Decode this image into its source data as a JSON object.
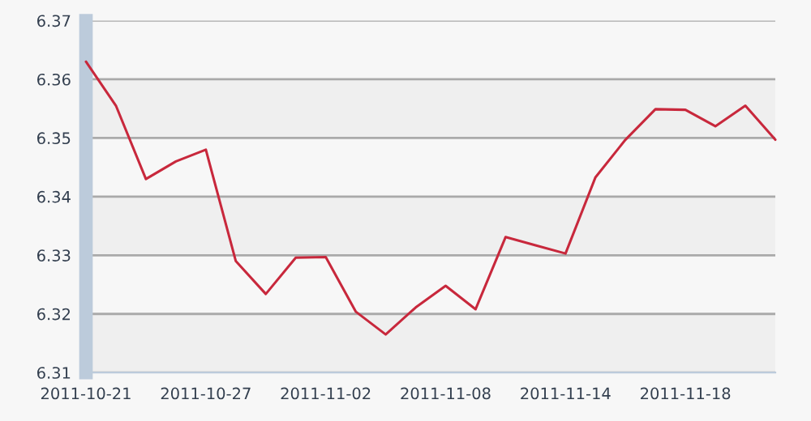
{
  "chart_data": {
    "type": "line",
    "categories": [
      "2011-10-21",
      null,
      null,
      null,
      "2011-10-27",
      null,
      null,
      null,
      "2011-11-02",
      null,
      null,
      null,
      "2011-11-08",
      null,
      null,
      null,
      "2011-11-14",
      null,
      null,
      null,
      "2011-11-18",
      null,
      null,
      null
    ],
    "series": [
      {
        "color": "#c8283c",
        "values": [
          6.363,
          6.3555,
          6.343,
          6.346,
          6.348,
          6.329,
          6.3234,
          6.3296,
          6.3297,
          6.3204,
          6.3165,
          6.3211,
          6.3248,
          6.3208,
          6.3331,
          6.3317,
          6.3303,
          6.3433,
          6.3497,
          6.3549,
          6.3548,
          6.352,
          6.3555,
          6.3497
        ]
      }
    ],
    "ylim": [
      6.31,
      6.37
    ],
    "yticks": [
      6.31,
      6.32,
      6.33,
      6.34,
      6.35,
      6.36,
      6.37
    ],
    "grid": "y",
    "marker": "none",
    "line_style": "solid",
    "legend": false
  }
}
